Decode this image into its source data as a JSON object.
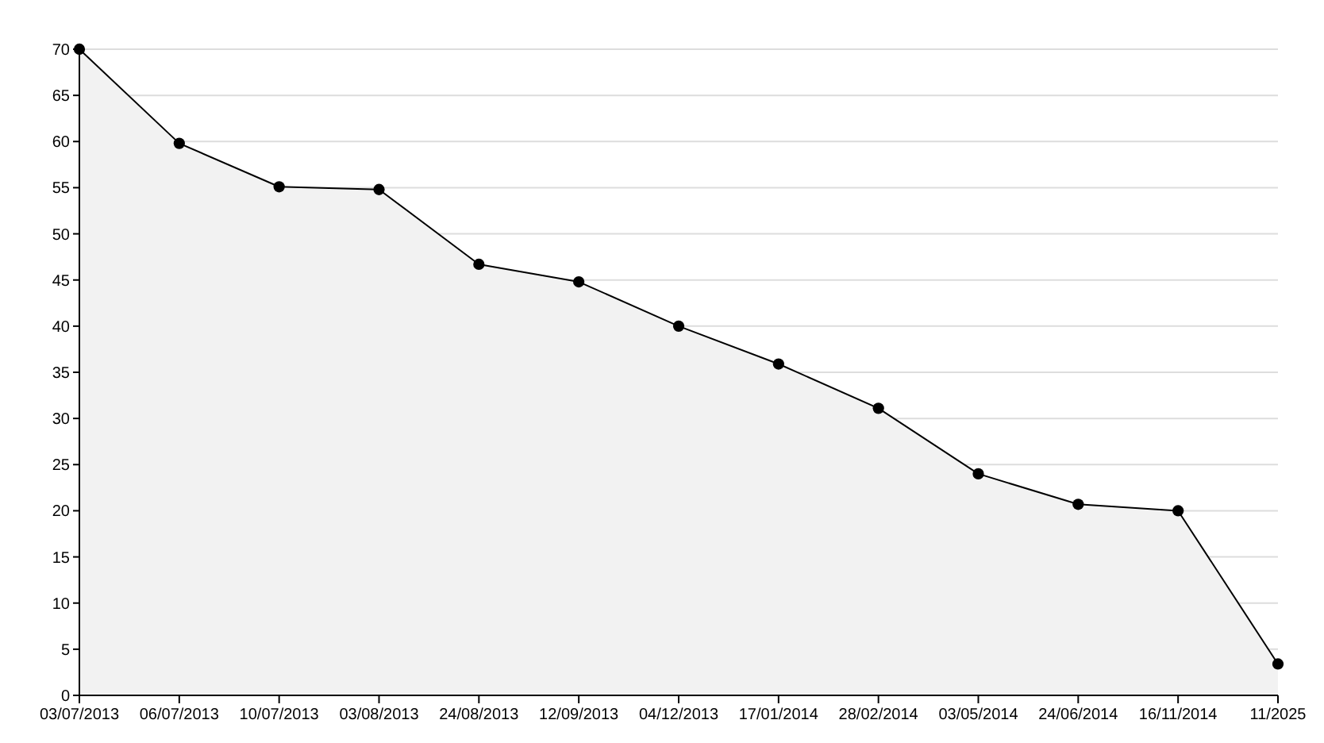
{
  "chart_data": {
    "type": "area",
    "categories": [
      "03/07/2013",
      "06/07/2013",
      "10/07/2013",
      "03/08/2013",
      "24/08/2013",
      "12/09/2013",
      "04/12/2013",
      "17/01/2014",
      "28/02/2014",
      "03/05/2014",
      "24/06/2014",
      "16/11/2014",
      "11/2025"
    ],
    "series": [
      {
        "color": "#000000",
        "values": [
          70,
          59.8,
          55.1,
          54.8,
          46.7,
          44.8,
          40,
          35.9,
          31.1,
          24,
          20.7,
          20,
          3.4
        ]
      }
    ],
    "ylim": [
      0,
      70
    ],
    "yticks": [
      0,
      5,
      10,
      15,
      20,
      25,
      30,
      35,
      40,
      45,
      50,
      55,
      60,
      65,
      70
    ],
    "grid": "y",
    "marker": "circle",
    "line_style": "solid"
  }
}
